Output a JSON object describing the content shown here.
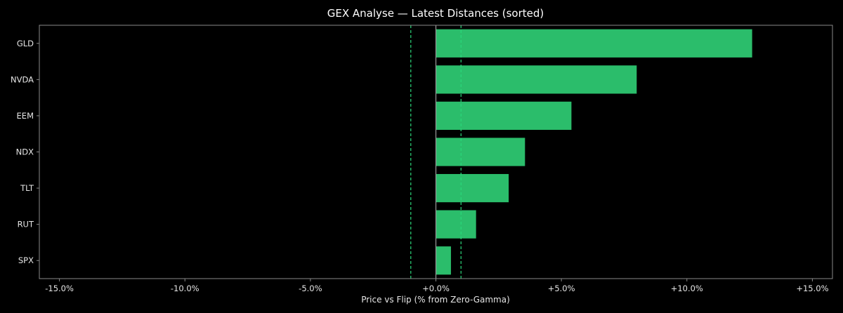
{
  "chart_data": {
    "type": "bar",
    "orientation": "horizontal",
    "title": "GEX Analyse — Latest Distances (sorted)",
    "xlabel": "Price vs Flip (% from Zero-Gamma)",
    "ylabel": "",
    "categories": [
      "GLD",
      "NVDA",
      "EEM",
      "NDX",
      "TLT",
      "RUT",
      "SPX"
    ],
    "values": [
      12.6,
      8.0,
      5.4,
      3.55,
      2.9,
      1.6,
      0.6
    ],
    "xlim": [
      -15.8,
      15.8
    ],
    "xticks": [
      -15,
      -10,
      -5,
      0,
      5,
      10,
      15
    ],
    "xtick_labels": [
      "-15.0%",
      "-10.0%",
      "-5.0%",
      "+0.0%",
      "+5.0%",
      "+10.0%",
      "+15.0%"
    ],
    "zero_line": 0,
    "threshold_lines": [
      -1.0,
      1.0
    ],
    "grid": false,
    "legend": "none",
    "colors": {
      "background": "#000000",
      "bar": "#2bbd6b",
      "threshold": "#2bd87a",
      "zero_line": "#9a9a9a",
      "spine": "#8a8a8a",
      "text": "#e6e6e6",
      "title": "#ffffff"
    }
  }
}
